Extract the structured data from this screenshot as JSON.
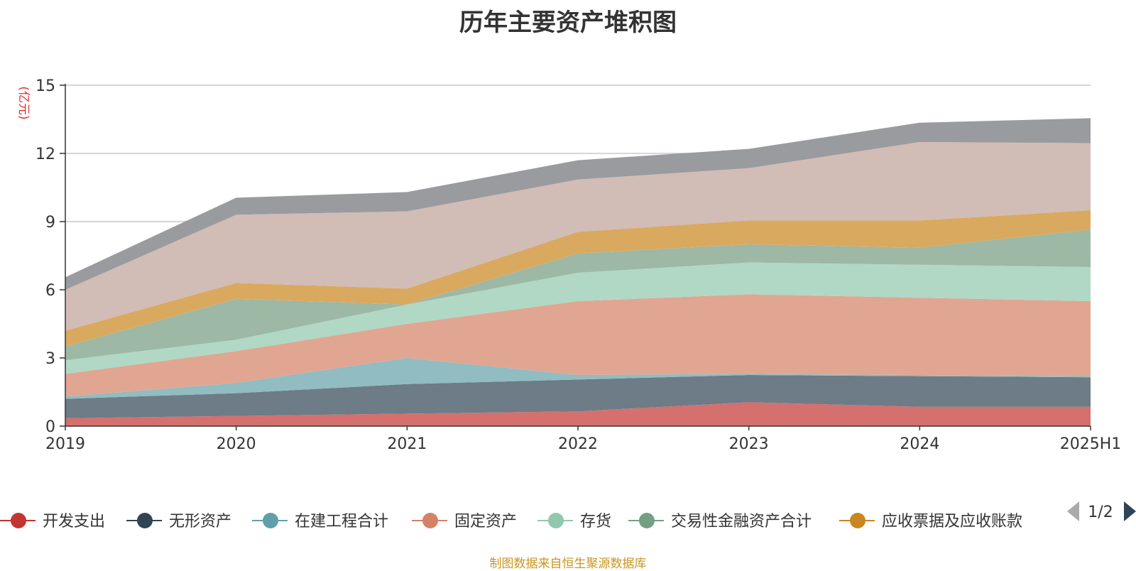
{
  "chart_data": {
    "type": "area",
    "title": "历年主要资产堆积图",
    "ylabel": "(亿元)",
    "xlabel": "",
    "categories": [
      "2019",
      "2020",
      "2021",
      "2022",
      "2023",
      "2024",
      "2025H1"
    ],
    "ylim": [
      0,
      15
    ],
    "yticks": [
      0,
      3,
      6,
      9,
      12,
      15
    ],
    "stacked": true,
    "grid": true,
    "legend_position": "bottom",
    "series": [
      {
        "name": "开发支出",
        "color": "#c23531",
        "fill": "#d4706e",
        "values": [
          0.35,
          0.45,
          0.55,
          0.65,
          1.05,
          0.85,
          0.85
        ]
      },
      {
        "name": "无形资产",
        "color": "#2f4554",
        "fill": "#6d7c86",
        "values": [
          0.85,
          1.0,
          1.3,
          1.4,
          1.2,
          1.35,
          1.3
        ]
      },
      {
        "name": "在建工程合计",
        "color": "#61a0a8",
        "fill": "#90bcc2",
        "values": [
          0.1,
          0.45,
          1.15,
          0.2,
          0.05,
          0.05,
          0.05
        ]
      },
      {
        "name": "固定资产",
        "color": "#d48265",
        "fill": "#e0a691",
        "values": [
          1.0,
          1.4,
          1.5,
          3.25,
          3.5,
          3.4,
          3.3
        ]
      },
      {
        "name": "存货",
        "color": "#91c7ae",
        "fill": "#b0d8c5",
        "values": [
          0.6,
          0.5,
          0.85,
          1.25,
          1.4,
          1.45,
          1.5
        ]
      },
      {
        "name": "交易性金融资产合计",
        "color": "#749f83",
        "fill": "#9db8a5",
        "values": [
          0.6,
          1.8,
          0.0,
          0.85,
          0.8,
          0.75,
          1.65
        ]
      },
      {
        "name": "应收票据及应收账款",
        "color": "#ca8622",
        "fill": "#d9a960",
        "values": [
          0.7,
          0.7,
          0.7,
          0.95,
          1.05,
          1.2,
          0.85
        ]
      },
      {
        "name": "",
        "color": "#bda29a",
        "fill": "#d1bcb6",
        "values": [
          1.8,
          3.0,
          3.4,
          2.3,
          2.3,
          3.45,
          2.95
        ]
      },
      {
        "name": "",
        "color": "#6e7074",
        "fill": "#9a9b9e",
        "values": [
          0.55,
          0.75,
          0.85,
          0.85,
          0.85,
          0.85,
          1.1
        ]
      }
    ]
  },
  "legend": {
    "page_indicator": "1/2"
  },
  "source_note": "制图数据来自恒生聚源数据库"
}
